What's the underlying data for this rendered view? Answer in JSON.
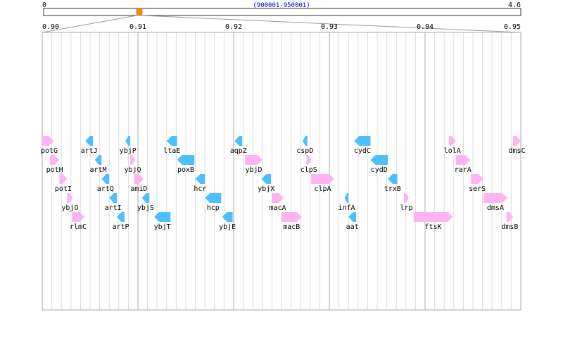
{
  "genome_bar": {
    "start_label": "0",
    "end_label": "4.6",
    "region_label": "(900001-950001)",
    "genome_length_mb": 4.6,
    "region_start_mb": 0.9,
    "region_end_mb": 0.95,
    "marker_color": "#ff8800"
  },
  "axis": {
    "ticks": [
      "0.90",
      "0.91",
      "0.92",
      "0.93",
      "0.94",
      "0.95"
    ],
    "range": [
      0.9,
      0.95
    ]
  },
  "colors": {
    "forward": "#ffb3f0",
    "reverse": "#4dbfff",
    "major_grid": "#aaaaaa",
    "minor_grid": "#dddddd"
  },
  "genes": [
    {
      "name": "potG",
      "start": 0.9,
      "end": 0.9012,
      "strand": "+",
      "row": 0
    },
    {
      "name": "potH",
      "start": 0.9008,
      "end": 0.9018,
      "strand": "+",
      "row": 1
    },
    {
      "name": "potI",
      "start": 0.9018,
      "end": 0.9026,
      "strand": "+",
      "row": 2
    },
    {
      "name": "ybjO",
      "start": 0.9026,
      "end": 0.9032,
      "strand": "+",
      "row": 3
    },
    {
      "name": "rlmC",
      "start": 0.9031,
      "end": 0.9044,
      "strand": "+",
      "row": 4
    },
    {
      "name": "artJ",
      "start": 0.9045,
      "end": 0.9053,
      "strand": "-",
      "row": 0
    },
    {
      "name": "artM",
      "start": 0.9055,
      "end": 0.9062,
      "strand": "-",
      "row": 1
    },
    {
      "name": "artQ",
      "start": 0.9062,
      "end": 0.907,
      "strand": "-",
      "row": 2
    },
    {
      "name": "artI",
      "start": 0.907,
      "end": 0.9078,
      "strand": "-",
      "row": 3
    },
    {
      "name": "artP",
      "start": 0.9078,
      "end": 0.9086,
      "strand": "-",
      "row": 4
    },
    {
      "name": "ybjP",
      "start": 0.9087,
      "end": 0.9092,
      "strand": "-",
      "row": 0
    },
    {
      "name": "ybjQ",
      "start": 0.9092,
      "end": 0.9097,
      "strand": "+",
      "row": 1
    },
    {
      "name": "amiD",
      "start": 0.9096,
      "end": 0.9106,
      "strand": "+",
      "row": 2
    },
    {
      "name": "ybjS",
      "start": 0.9104,
      "end": 0.9112,
      "strand": "-",
      "row": 3
    },
    {
      "name": "ybjT",
      "start": 0.9117,
      "end": 0.9134,
      "strand": "-",
      "row": 4
    },
    {
      "name": "ltaE",
      "start": 0.913,
      "end": 0.9141,
      "strand": "-",
      "row": 0
    },
    {
      "name": "poxB",
      "start": 0.9141,
      "end": 0.9159,
      "strand": "-",
      "row": 1
    },
    {
      "name": "hcr",
      "start": 0.916,
      "end": 0.917,
      "strand": "-",
      "row": 2
    },
    {
      "name": "hcp",
      "start": 0.917,
      "end": 0.9187,
      "strand": "-",
      "row": 3
    },
    {
      "name": "ybjE",
      "start": 0.9188,
      "end": 0.9199,
      "strand": "-",
      "row": 4
    },
    {
      "name": "aqpZ",
      "start": 0.9201,
      "end": 0.9209,
      "strand": "-",
      "row": 0
    },
    {
      "name": "ybjD",
      "start": 0.9212,
      "end": 0.923,
      "strand": "+",
      "row": 1
    },
    {
      "name": "ybjX",
      "start": 0.9229,
      "end": 0.9239,
      "strand": "-",
      "row": 2
    },
    {
      "name": "macA",
      "start": 0.924,
      "end": 0.9252,
      "strand": "+",
      "row": 3
    },
    {
      "name": "macB",
      "start": 0.925,
      "end": 0.9271,
      "strand": "+",
      "row": 4
    },
    {
      "name": "cspD",
      "start": 0.9272,
      "end": 0.9277,
      "strand": "-",
      "row": 0
    },
    {
      "name": "clpS",
      "start": 0.9276,
      "end": 0.9281,
      "strand": "+",
      "row": 1
    },
    {
      "name": "clpA",
      "start": 0.9281,
      "end": 0.9305,
      "strand": "+",
      "row": 2
    },
    {
      "name": "infA",
      "start": 0.9316,
      "end": 0.932,
      "strand": "-",
      "row": 3
    },
    {
      "name": "aat",
      "start": 0.932,
      "end": 0.9328,
      "strand": "-",
      "row": 4
    },
    {
      "name": "cydC",
      "start": 0.9326,
      "end": 0.9343,
      "strand": "-",
      "row": 0
    },
    {
      "name": "cydD",
      "start": 0.9343,
      "end": 0.9361,
      "strand": "-",
      "row": 1
    },
    {
      "name": "trxB",
      "start": 0.9361,
      "end": 0.9371,
      "strand": "-",
      "row": 2
    },
    {
      "name": "lrp",
      "start": 0.9378,
      "end": 0.9383,
      "strand": "+",
      "row": 3
    },
    {
      "name": "ftsK",
      "start": 0.9388,
      "end": 0.9429,
      "strand": "+",
      "row": 4
    },
    {
      "name": "lolA",
      "start": 0.9425,
      "end": 0.9432,
      "strand": "+",
      "row": 0
    },
    {
      "name": "rarA",
      "start": 0.9432,
      "end": 0.9447,
      "strand": "+",
      "row": 1
    },
    {
      "name": "serS",
      "start": 0.9448,
      "end": 0.9461,
      "strand": "+",
      "row": 2
    },
    {
      "name": "dmsA",
      "start": 0.9461,
      "end": 0.9486,
      "strand": "+",
      "row": 3
    },
    {
      "name": "dmsB",
      "start": 0.9485,
      "end": 0.9492,
      "strand": "+",
      "row": 4
    },
    {
      "name": "dmsC",
      "start": 0.9492,
      "end": 0.95,
      "strand": "+",
      "row": 0
    }
  ]
}
